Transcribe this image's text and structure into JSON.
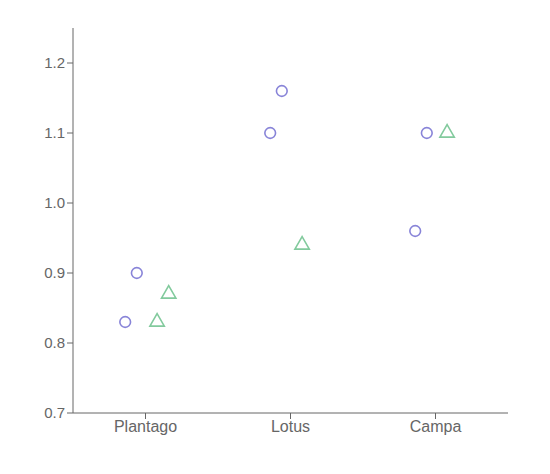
{
  "chart_data": {
    "type": "scatter",
    "categories": [
      "Plantago",
      "Lotus",
      "Campa"
    ],
    "series": [
      {
        "marker": "circle",
        "values": [
          [
            0.83,
            0.9
          ],
          [
            1.1,
            1.16
          ],
          [
            0.96,
            1.1
          ]
        ]
      },
      {
        "marker": "triangle",
        "values": [
          [
            0.83,
            0.87
          ],
          [
            0.94
          ],
          [
            1.1
          ]
        ]
      }
    ],
    "ylim": [
      0.7,
      1.25
    ],
    "yticks": [
      0.7,
      0.8,
      0.9,
      {
        "value": 1.0,
        "label": "1.0"
      },
      1.1,
      1.2
    ]
  }
}
